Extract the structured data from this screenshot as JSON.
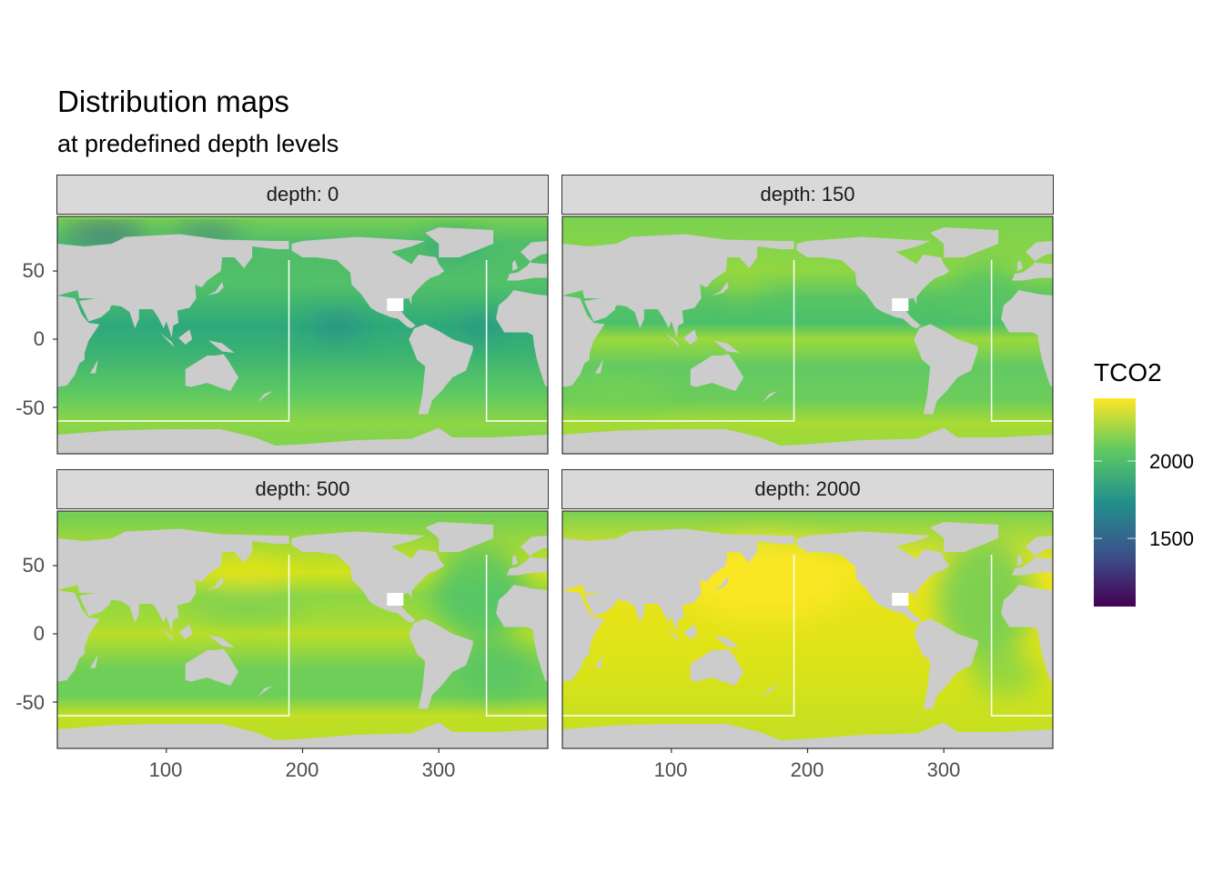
{
  "title": "Distribution maps",
  "subtitle": "at predefined depth levels",
  "chart_data": {
    "type": "heatmap",
    "facet_label_prefix": "depth: ",
    "panels": [
      {
        "label": "depth: 0",
        "depth": 0
      },
      {
        "label": "depth: 150",
        "depth": 150
      },
      {
        "label": "depth: 500",
        "depth": 500
      },
      {
        "label": "depth: 2000",
        "depth": 2000
      }
    ],
    "xlim": [
      20,
      380
    ],
    "ylim": [
      -84,
      90
    ],
    "x_ticks": [
      "100",
      "200",
      "300"
    ],
    "y_ticks": [
      "50",
      "0",
      "-50"
    ],
    "legend": {
      "title": "TCO2",
      "ticks": [
        "2000",
        "1500"
      ],
      "range": [
        1060,
        2405
      ],
      "position": "right",
      "colors": [
        "#440154",
        "#3b528b",
        "#21908c",
        "#5ec962",
        "#fde725"
      ]
    },
    "land_color": "#cccccc",
    "grid": false
  }
}
